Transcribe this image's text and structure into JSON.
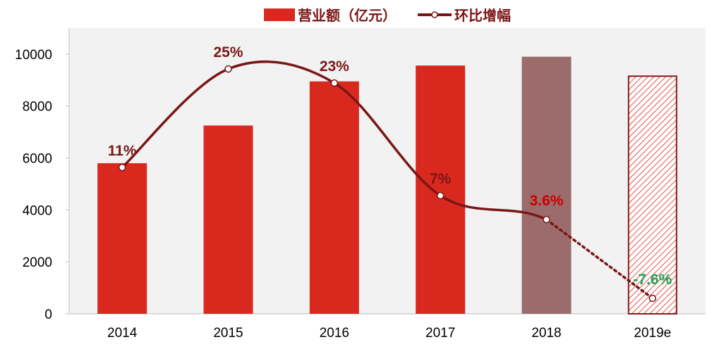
{
  "chart_data": {
    "type": "bar",
    "categories": [
      "2014",
      "2015",
      "2016",
      "2017",
      "2018",
      "2019e"
    ],
    "ylim": [
      0,
      11000
    ],
    "yticks": [
      0,
      2000,
      4000,
      6000,
      8000,
      10000
    ],
    "ytick_labels": [
      "0",
      "2000",
      "4000",
      "6000",
      "8000",
      "10000"
    ],
    "grid": false,
    "legend_position": "top-center",
    "series": [
      {
        "name": "营业额（亿元）",
        "kind": "bar",
        "values": [
          5800,
          7250,
          8950,
          9560,
          9900,
          9150
        ],
        "color": "#d9291f",
        "bar_styles": [
          "solid",
          "solid",
          "solid",
          "solid",
          "muted",
          "hatched"
        ]
      },
      {
        "name": "环比增幅",
        "kind": "line",
        "values": [
          11,
          25,
          23,
          7,
          3.6,
          -7.6
        ],
        "labels": [
          "11%",
          "25%",
          "23%",
          "7%",
          "3.6%",
          "-7.6%"
        ],
        "color": "#7a1616",
        "line_styles": [
          "solid",
          "solid",
          "solid",
          "solid",
          "dotted"
        ]
      }
    ],
    "colors": {
      "bar": "#d9291f",
      "bar_muted": "#9c6b6b",
      "bar_hatch": "#d9291f",
      "line": "#7a1616",
      "label_default": "#7a1616",
      "label_highlight_red": "#cc0000",
      "label_highlight_green": "#22a050",
      "plot_background": "#f2f2f2"
    }
  }
}
